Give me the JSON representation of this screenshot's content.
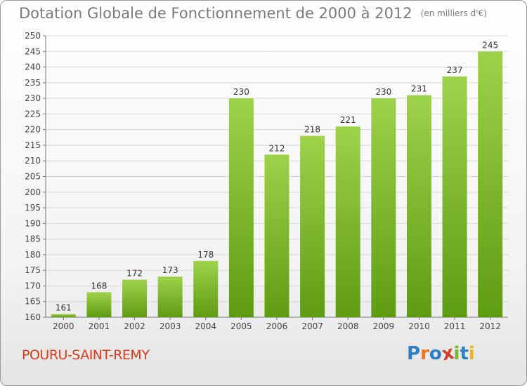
{
  "header": {
    "title": "Dotation Globale de Fonctionnement de 2000 à 2012",
    "subtitle": "(en milliers d'€)"
  },
  "footer": {
    "commune": "POURU-SAINT-REMY",
    "logo_text": "Proxiti"
  },
  "colors": {
    "bar_light": "#9ed24a",
    "bar_dark": "#5e9c12",
    "commune_text": "#d83a1a",
    "logo_letters": [
      "#2e7fc4",
      "#e8731c",
      "#2e7fc4",
      "#d63a2a",
      "#76b82a",
      "#2e7fc4",
      "#f2b21c"
    ]
  },
  "chart_data": {
    "type": "bar",
    "categories": [
      "2000",
      "2001",
      "2002",
      "2003",
      "2004",
      "2005",
      "2006",
      "2007",
      "2008",
      "2009",
      "2010",
      "2011",
      "2012"
    ],
    "values": [
      161,
      168,
      172,
      173,
      178,
      230,
      212,
      218,
      221,
      230,
      231,
      237,
      245
    ],
    "title": "Dotation Globale de Fonctionnement de 2000 à 2012",
    "subtitle": "(en milliers d'€)",
    "xlabel": "",
    "ylabel": "",
    "ylim": [
      160,
      250
    ],
    "ytick_step": 5,
    "grid": true,
    "legend": "none",
    "data_labels": true
  }
}
